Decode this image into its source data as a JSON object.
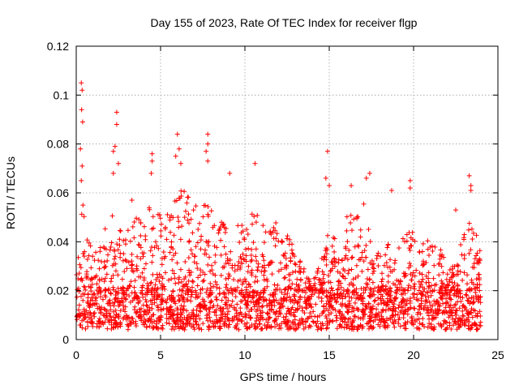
{
  "chart_data": {
    "type": "scatter",
    "title": "Day 155 of 2023, Rate Of TEC Index for receiver flgp",
    "xlabel": "GPS time / hours",
    "ylabel": "ROTI / TECUs",
    "xlim": [
      0,
      25
    ],
    "ylim": [
      0,
      0.12
    ],
    "xticks": [
      "0",
      "5",
      "10",
      "15",
      "20",
      "25"
    ],
    "yticks": [
      "0",
      "0.02",
      "0.04",
      "0.06",
      "0.08",
      "0.1",
      "0.12"
    ],
    "grid": true,
    "marker": "+",
    "color": "#ff0000",
    "x_span_hours": [
      0,
      24
    ],
    "baseline_range": [
      0.004,
      0.02
    ],
    "series": [
      {
        "name": "flgp",
        "envelope_hours": [
          0,
          0.5,
          1,
          1.5,
          2,
          2.5,
          3,
          3.5,
          4,
          4.5,
          5,
          5.5,
          6,
          6.5,
          7,
          7.5,
          8,
          8.5,
          9,
          9.5,
          10,
          10.5,
          11,
          11.5,
          12,
          12.5,
          13,
          13.5,
          14,
          14.5,
          15,
          15.5,
          16,
          16.5,
          17,
          17.5,
          18,
          18.5,
          19,
          19.5,
          20,
          20.5,
          21,
          21.5,
          22,
          22.5,
          23,
          23.5,
          24
        ],
        "envelope_roti": [
          0.045,
          0.055,
          0.035,
          0.04,
          0.055,
          0.05,
          0.045,
          0.05,
          0.048,
          0.06,
          0.05,
          0.052,
          0.065,
          0.06,
          0.058,
          0.06,
          0.055,
          0.05,
          0.048,
          0.05,
          0.045,
          0.055,
          0.052,
          0.045,
          0.05,
          0.045,
          0.035,
          0.03,
          0.025,
          0.035,
          0.045,
          0.04,
          0.05,
          0.055,
          0.06,
          0.04,
          0.035,
          0.04,
          0.045,
          0.045,
          0.045,
          0.04,
          0.045,
          0.04,
          0.03,
          0.03,
          0.045,
          0.05,
          0.035
        ],
        "outliers": [
          [
            0.3,
            0.105
          ],
          [
            0.35,
            0.102
          ],
          [
            0.32,
            0.094
          ],
          [
            0.38,
            0.089
          ],
          [
            0.25,
            0.078
          ],
          [
            0.35,
            0.071
          ],
          [
            0.3,
            0.065
          ],
          [
            0.4,
            0.055
          ],
          [
            2.4,
            0.093
          ],
          [
            2.4,
            0.088
          ],
          [
            2.3,
            0.079
          ],
          [
            2.2,
            0.077
          ],
          [
            2.2,
            0.068
          ],
          [
            2.5,
            0.072
          ],
          [
            3.3,
            0.057
          ],
          [
            4.5,
            0.076
          ],
          [
            4.5,
            0.073
          ],
          [
            4.45,
            0.068
          ],
          [
            6.0,
            0.084
          ],
          [
            6.1,
            0.078
          ],
          [
            5.9,
            0.075
          ],
          [
            6.2,
            0.072
          ],
          [
            7.8,
            0.084
          ],
          [
            7.8,
            0.08
          ],
          [
            7.7,
            0.077
          ],
          [
            7.8,
            0.073
          ],
          [
            9.1,
            0.068
          ],
          [
            10.6,
            0.072
          ],
          [
            14.9,
            0.077
          ],
          [
            14.8,
            0.066
          ],
          [
            15.0,
            0.063
          ],
          [
            17.4,
            0.068
          ],
          [
            17.2,
            0.066
          ],
          [
            16.3,
            0.063
          ],
          [
            18.7,
            0.061
          ],
          [
            19.8,
            0.065
          ],
          [
            19.8,
            0.062
          ],
          [
            23.3,
            0.067
          ],
          [
            23.4,
            0.063
          ],
          [
            23.4,
            0.061
          ],
          [
            22.5,
            0.053
          ]
        ]
      }
    ]
  }
}
